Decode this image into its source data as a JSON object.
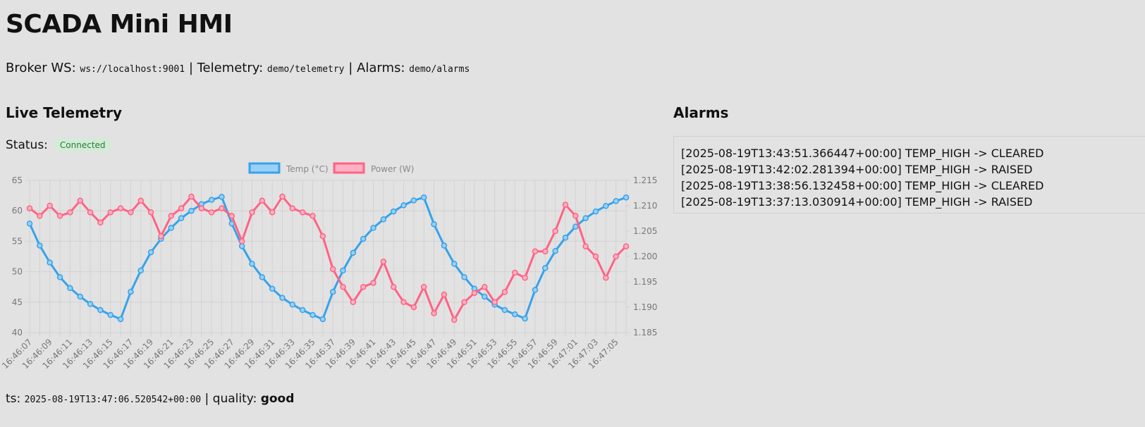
{
  "header": {
    "title": "SCADA Mini HMI",
    "broker_label": "Broker WS:",
    "broker_url": "ws://localhost:9001",
    "telemetry_label": "| Telemetry:",
    "telemetry_topic": "demo/telemetry",
    "alarms_label": "| Alarms:",
    "alarms_topic": "demo/alarms"
  },
  "telemetry": {
    "title": "Live Telemetry",
    "status_label": "Status:",
    "status_value": "Connected",
    "ts_label": "ts:",
    "ts_value": "2025-08-19T13:47:06.520542+00:00",
    "quality_label": "| quality:",
    "quality_value": "good"
  },
  "alarms": {
    "title": "Alarms",
    "items": [
      "[2025-08-19T13:43:51.366447+00:00] TEMP_HIGH -> CLEARED",
      "[2025-08-19T13:42:02.281394+00:00] TEMP_HIGH -> RAISED",
      "[2025-08-19T13:38:56.132458+00:00] TEMP_HIGH -> CLEARED",
      "[2025-08-19T13:37:13.030914+00:00] TEMP_HIGH -> RAISED"
    ]
  },
  "colors": {
    "temp": "#36a2eb",
    "temp_fill": "#9ad0f5",
    "power": "#ff6384",
    "power_fill": "#ffb1c1",
    "grid": "#d2d2d2",
    "tick": "#777777"
  },
  "chart_data": {
    "type": "line",
    "x": [
      "16:46:07",
      "16:46:08",
      "16:46:09",
      "16:46:10",
      "16:46:11",
      "16:46:12",
      "16:46:13",
      "16:46:14",
      "16:46:15",
      "16:46:16",
      "16:46:17",
      "16:46:18",
      "16:46:19",
      "16:46:20",
      "16:46:21",
      "16:46:22",
      "16:46:23",
      "16:46:24",
      "16:46:25",
      "16:46:26",
      "16:46:27",
      "16:46:28",
      "16:46:29",
      "16:46:30",
      "16:46:31",
      "16:46:32",
      "16:46:33",
      "16:46:34",
      "16:46:35",
      "16:46:36",
      "16:46:37",
      "16:46:38",
      "16:46:39",
      "16:46:40",
      "16:46:41",
      "16:46:42",
      "16:46:43",
      "16:46:44",
      "16:46:45",
      "16:46:46",
      "16:46:47",
      "16:46:48",
      "16:46:49",
      "16:46:50",
      "16:46:51",
      "16:46:52",
      "16:46:53",
      "16:46:54",
      "16:46:55",
      "16:46:56",
      "16:46:57",
      "16:46:58",
      "16:46:59",
      "16:47:00",
      "16:47:01",
      "16:47:02",
      "16:47:03",
      "16:47:04",
      "16:47:05",
      "16:47:06"
    ],
    "x_tick_labels": [
      "16:46:07",
      "16:46:09",
      "16:46:11",
      "16:46:13",
      "16:46:15",
      "16:46:17",
      "16:46:19",
      "16:46:21",
      "16:46:23",
      "16:46:25",
      "16:46:27",
      "16:46:29",
      "16:46:31",
      "16:46:33",
      "16:46:35",
      "16:46:37",
      "16:46:39",
      "16:46:41",
      "16:46:43",
      "16:46:45",
      "16:46:47",
      "16:46:49",
      "16:46:51",
      "16:46:53",
      "16:46:55",
      "16:46:57",
      "16:46:59",
      "16:47:01",
      "16:47:03",
      "16:47:05"
    ],
    "series": [
      {
        "name": "Temp (°C)",
        "axis": "left",
        "values": [
          57.9,
          54.3,
          51.5,
          49.1,
          47.3,
          45.9,
          44.7,
          43.7,
          42.9,
          42.2,
          46.7,
          50.2,
          53.2,
          55.4,
          57.2,
          58.8,
          60.0,
          61.1,
          61.8,
          62.3,
          57.9,
          54.2,
          51.3,
          49.1,
          47.2,
          45.7,
          44.6,
          43.7,
          42.9,
          42.2,
          46.7,
          50.2,
          53.1,
          55.4,
          57.2,
          58.6,
          59.9,
          60.9,
          61.7,
          62.2,
          57.8,
          54.3,
          51.3,
          49.1,
          47.2,
          45.9,
          44.6,
          43.7,
          43.0,
          42.3,
          47.0,
          50.6,
          53.4,
          55.6,
          57.4,
          58.8,
          59.9,
          60.8,
          61.6,
          62.2
        ]
      },
      {
        "name": "Power (W)",
        "axis": "right",
        "values": [
          1.2095,
          1.208,
          1.21,
          1.208,
          1.2087,
          1.211,
          1.2087,
          1.2067,
          1.2087,
          1.2095,
          1.2087,
          1.211,
          1.2087,
          1.204,
          1.208,
          1.2095,
          1.2118,
          1.2095,
          1.2087,
          1.2095,
          1.208,
          1.203,
          1.2087,
          1.211,
          1.2087,
          1.2118,
          1.2095,
          1.2087,
          1.208,
          1.204,
          1.1975,
          1.194,
          1.191,
          1.194,
          1.1948,
          1.199,
          1.194,
          1.191,
          1.19,
          1.194,
          1.1888,
          1.1925,
          1.1875,
          1.191,
          1.1928,
          1.194,
          1.191,
          1.193,
          1.1968,
          1.1958,
          1.201,
          1.201,
          1.205,
          1.2102,
          1.208,
          1.202,
          1.2,
          1.1958,
          1.2,
          1.202
        ]
      }
    ],
    "y_left": {
      "min": 40,
      "max": 65,
      "ticks": [
        "65",
        "60",
        "55",
        "50",
        "45",
        "40"
      ]
    },
    "y_right": {
      "min": 1.185,
      "max": 1.215,
      "ticks": [
        "1.215",
        "1.210",
        "1.205",
        "1.200",
        "1.195",
        "1.190",
        "1.185"
      ]
    },
    "grid": true,
    "legend_position": "top"
  }
}
